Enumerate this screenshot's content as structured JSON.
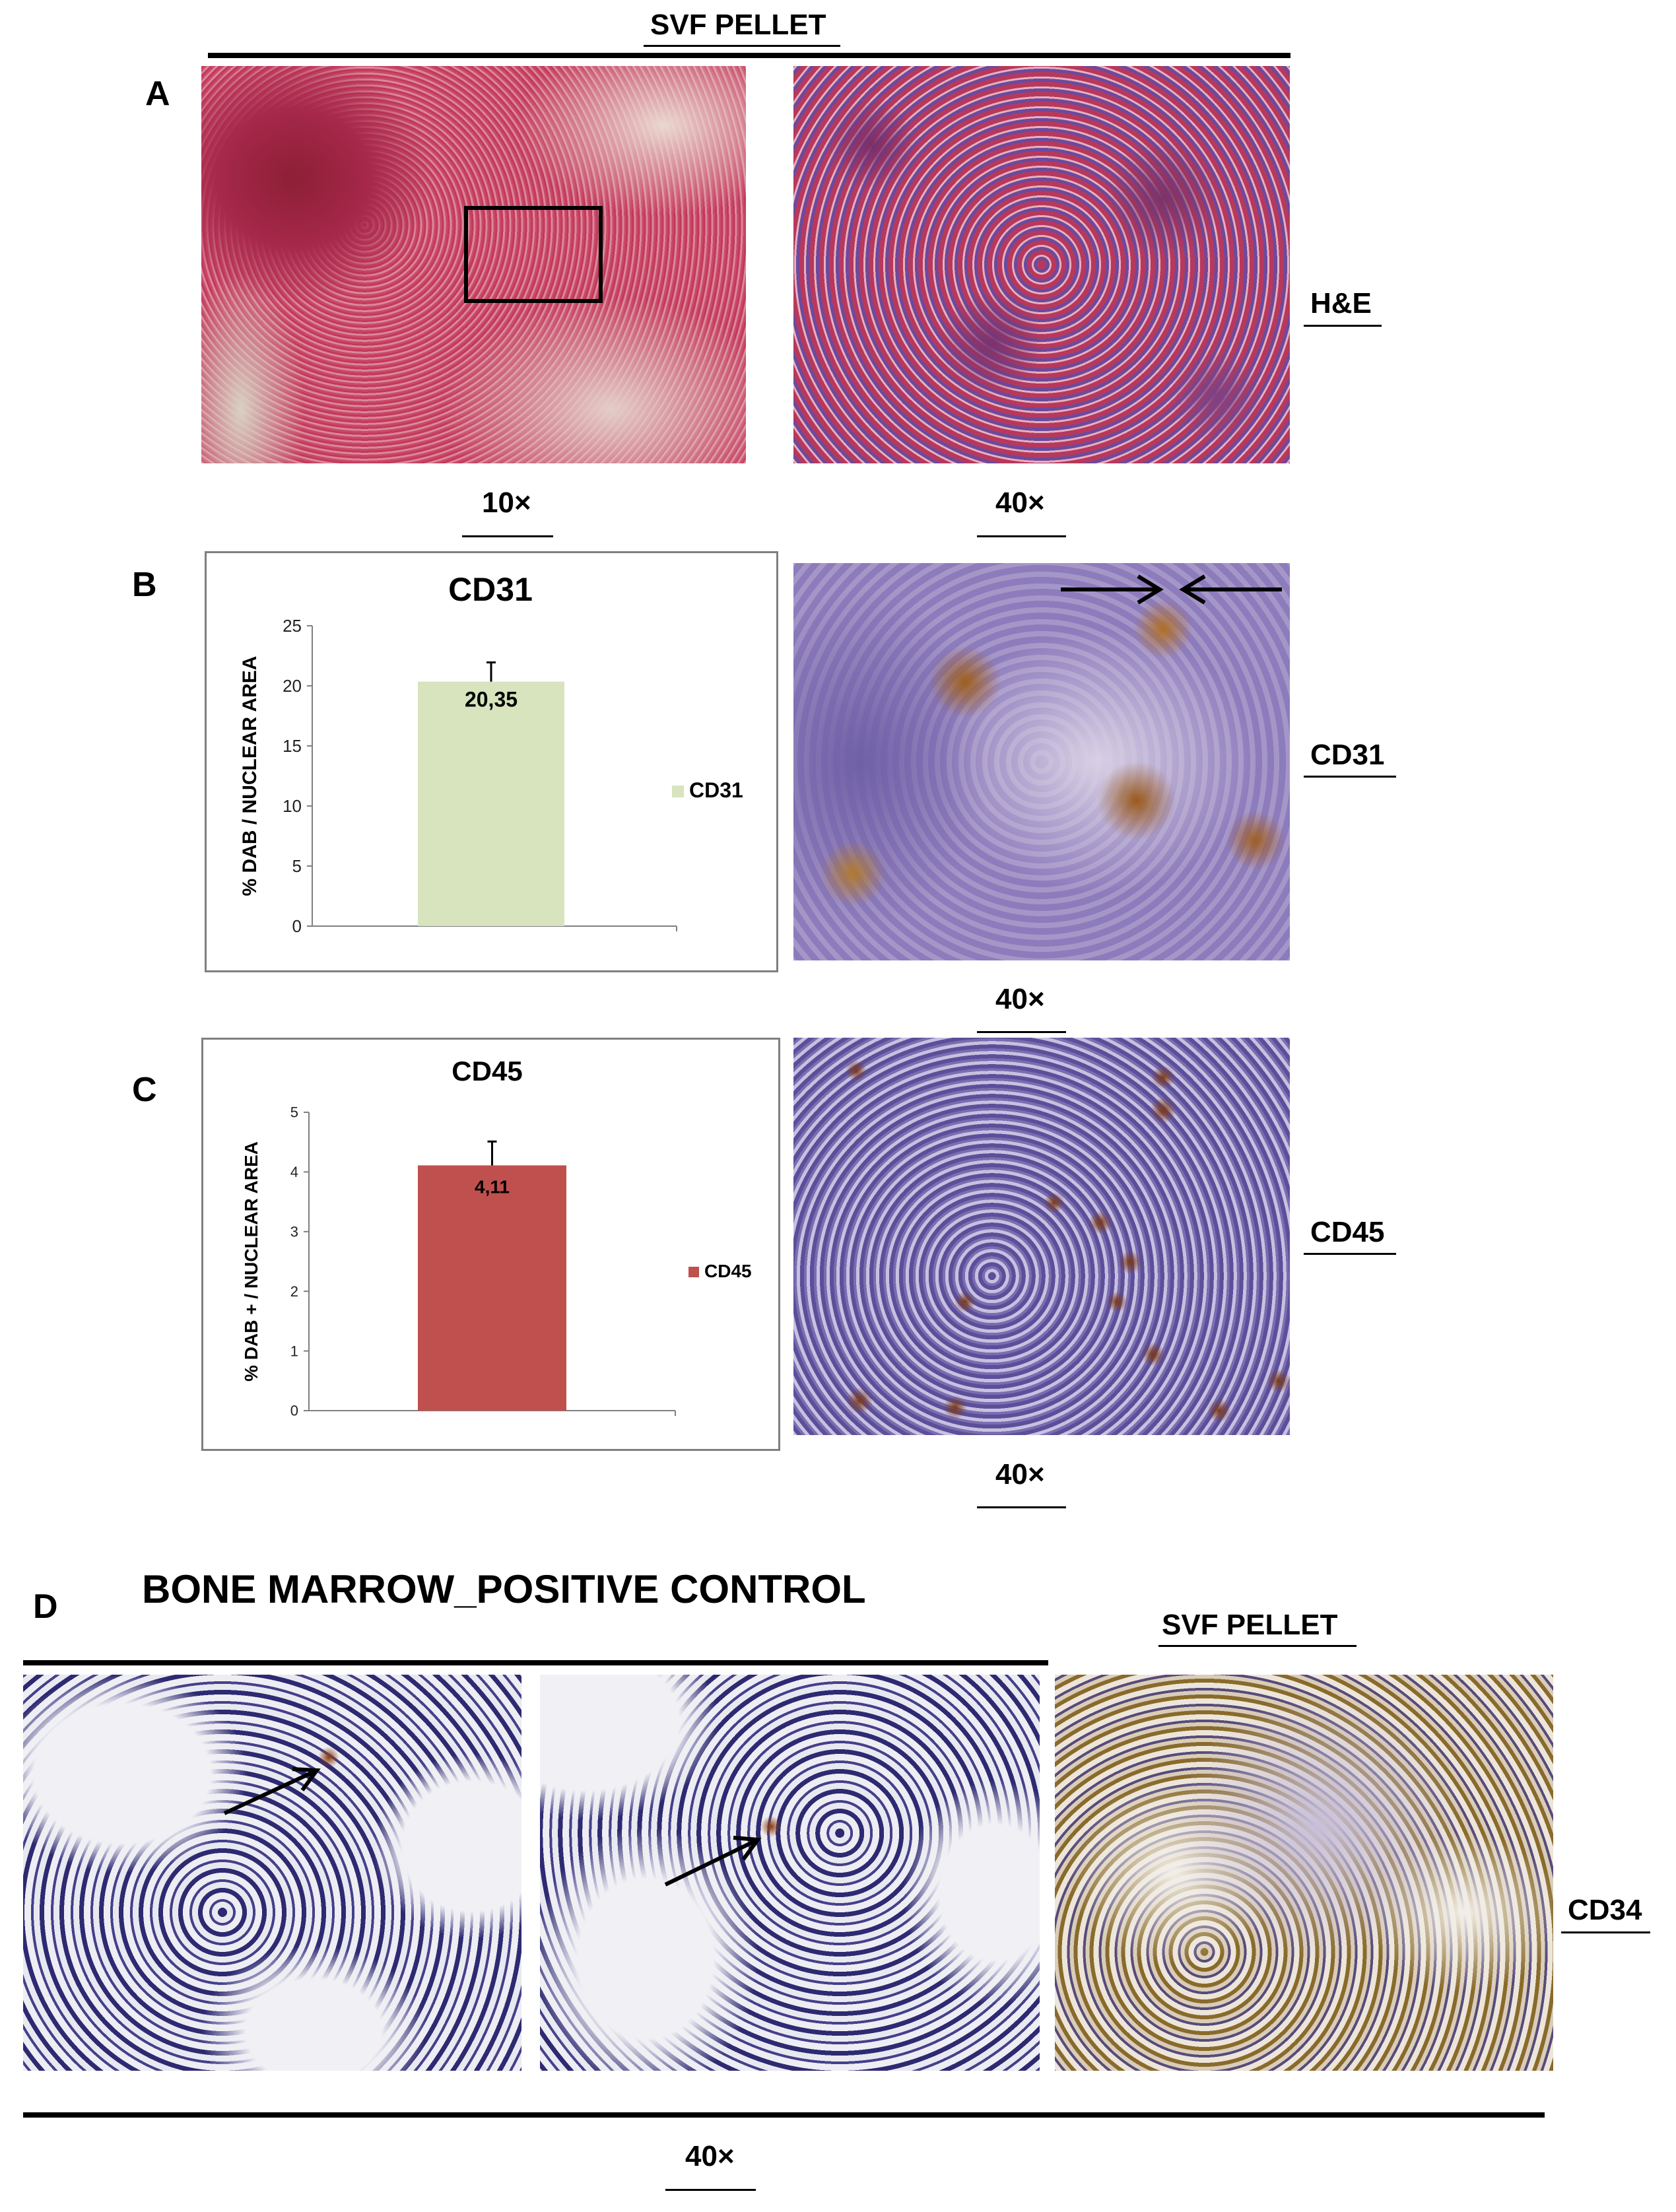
{
  "headers": {
    "svf_top": "SVF PELLET",
    "bone_marrow": "BONE MARROW_POSITIVE CONTROL",
    "svf_d": "SVF PELLET"
  },
  "panel_letters": {
    "a": "A",
    "b": "B",
    "c": "C",
    "d": "D"
  },
  "stain_labels": {
    "he": "H&E",
    "cd31": "CD31",
    "cd45": "CD45",
    "cd34": "CD34"
  },
  "magnifications": {
    "a_left": "10×",
    "a_right": "40×",
    "b": "40×",
    "c": "40×",
    "d": "40×"
  },
  "colors": {
    "cd31_bar": "#d7e4bd",
    "cd45_bar": "#c0504d",
    "he_stain": "#c4385c",
    "hematoxylin": "#6a5aa8",
    "dab": "#9a5a1c"
  },
  "chart_data": [
    {
      "type": "bar",
      "title": "CD31",
      "ylabel": "% DAB / NUCLEAR AREA",
      "ylim": [
        0,
        25
      ],
      "yticks": [
        "0",
        "5",
        "10",
        "15",
        "20",
        "25"
      ],
      "categories": [
        ""
      ],
      "series": [
        {
          "name": "CD31",
          "values": [
            20.35
          ],
          "error": 1.6,
          "color": "#d7e4bd",
          "data_label": "20,35"
        }
      ],
      "legend": "right"
    },
    {
      "type": "bar",
      "title": "CD45",
      "ylabel": "% DAB + / NUCLEAR AREA",
      "ylim": [
        0,
        5
      ],
      "yticks": [
        "0",
        "1",
        "2",
        "3",
        "4",
        "5"
      ],
      "categories": [
        ""
      ],
      "series": [
        {
          "name": "CD45",
          "values": [
            4.11
          ],
          "error": 0.4,
          "color": "#c0504d",
          "data_label": "4,11"
        }
      ],
      "legend": "right"
    }
  ]
}
